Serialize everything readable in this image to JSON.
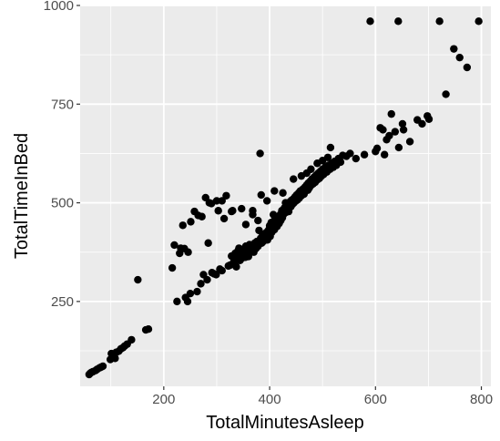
{
  "chart_data": {
    "type": "scatter",
    "title": "",
    "xlabel": "TotalMinutesAsleep",
    "ylabel": "TotalTimeInBed",
    "xlim": [
      42,
      818
    ],
    "ylim": [
      35,
      1000
    ],
    "x_ticks": [
      200,
      400,
      600,
      800
    ],
    "y_ticks": [
      250,
      500,
      750,
      1000
    ],
    "grid": true,
    "legend": "none",
    "colors": {
      "panel": "#ebebeb",
      "grid": "#ffffff",
      "point": "#000000",
      "tick_text": "#4d4d4d",
      "tick_mark": "#333333"
    },
    "points": [
      [
        59,
        65
      ],
      [
        61,
        68
      ],
      [
        63,
        70
      ],
      [
        66,
        72
      ],
      [
        71,
        75
      ],
      [
        74,
        78
      ],
      [
        79,
        82
      ],
      [
        82,
        84
      ],
      [
        85,
        86
      ],
      [
        99,
        103
      ],
      [
        101,
        118
      ],
      [
        105,
        110
      ],
      [
        108,
        106
      ],
      [
        110,
        121
      ],
      [
        115,
        124
      ],
      [
        119,
        130
      ],
      [
        123,
        133
      ],
      [
        126,
        137
      ],
      [
        131,
        142
      ],
      [
        139,
        153
      ],
      [
        151,
        305
      ],
      [
        166,
        178
      ],
      [
        171,
        180
      ],
      [
        216,
        335
      ],
      [
        220,
        393
      ],
      [
        225,
        250
      ],
      [
        230,
        372
      ],
      [
        232,
        385
      ],
      [
        236,
        443
      ],
      [
        239,
        384
      ],
      [
        241,
        260
      ],
      [
        245,
        250
      ],
      [
        246,
        375
      ],
      [
        250,
        270
      ],
      [
        251,
        452
      ],
      [
        258,
        478
      ],
      [
        263,
        275
      ],
      [
        265,
        468
      ],
      [
        270,
        295
      ],
      [
        272,
        465
      ],
      [
        275,
        318
      ],
      [
        279,
        513
      ],
      [
        282,
        305
      ],
      [
        284,
        398
      ],
      [
        286,
        500
      ],
      [
        290,
        498
      ],
      [
        291,
        323
      ],
      [
        295,
        320
      ],
      [
        299,
        318
      ],
      [
        303,
        480
      ],
      [
        306,
        332
      ],
      [
        310,
        328
      ],
      [
        314,
        460
      ],
      [
        318,
        518
      ],
      [
        322,
        340
      ],
      [
        325,
        342
      ],
      [
        328,
        365
      ],
      [
        330,
        480
      ],
      [
        332,
        350
      ],
      [
        334,
        358
      ],
      [
        335,
        372
      ],
      [
        337,
        338
      ],
      [
        339,
        362
      ],
      [
        340,
        378
      ],
      [
        342,
        385
      ],
      [
        344,
        354
      ],
      [
        346,
        368
      ],
      [
        348,
        360
      ],
      [
        350,
        382
      ],
      [
        352,
        375
      ],
      [
        354,
        362
      ],
      [
        355,
        390
      ],
      [
        357,
        370
      ],
      [
        358,
        385
      ],
      [
        360,
        364
      ],
      [
        362,
        394
      ],
      [
        363,
        378
      ],
      [
        365,
        385
      ],
      [
        366,
        392
      ],
      [
        368,
        480
      ],
      [
        370,
        375
      ],
      [
        372,
        398
      ],
      [
        374,
        384
      ],
      [
        376,
        402
      ],
      [
        378,
        390
      ],
      [
        380,
        430
      ],
      [
        382,
        625
      ],
      [
        383,
        410
      ],
      [
        385,
        398
      ],
      [
        386,
        415
      ],
      [
        388,
        402
      ],
      [
        390,
        420
      ],
      [
        392,
        412
      ],
      [
        394,
        425
      ],
      [
        396,
        406
      ],
      [
        398,
        431
      ],
      [
        400,
        442
      ],
      [
        401,
        415
      ],
      [
        403,
        450
      ],
      [
        404,
        425
      ],
      [
        406,
        438
      ],
      [
        407,
        470
      ],
      [
        409,
        432
      ],
      [
        410,
        459
      ],
      [
        412,
        445
      ],
      [
        414,
        440
      ],
      [
        415,
        452
      ],
      [
        417,
        462
      ],
      [
        418,
        448
      ],
      [
        420,
        470
      ],
      [
        421,
        455
      ],
      [
        423,
        480
      ],
      [
        424,
        462
      ],
      [
        426,
        470
      ],
      [
        428,
        487
      ],
      [
        430,
        500
      ],
      [
        431,
        476
      ],
      [
        433,
        488
      ],
      [
        435,
        495
      ],
      [
        436,
        478
      ],
      [
        438,
        502
      ],
      [
        440,
        490
      ],
      [
        441,
        506
      ],
      [
        443,
        496
      ],
      [
        445,
        510
      ],
      [
        446,
        500
      ],
      [
        448,
        515
      ],
      [
        450,
        505
      ],
      [
        451,
        520
      ],
      [
        453,
        508
      ],
      [
        455,
        525
      ],
      [
        456,
        512
      ],
      [
        458,
        530
      ],
      [
        460,
        518
      ],
      [
        462,
        527
      ],
      [
        463,
        535
      ],
      [
        465,
        522
      ],
      [
        467,
        540
      ],
      [
        468,
        530
      ],
      [
        470,
        545
      ],
      [
        472,
        532
      ],
      [
        473,
        550
      ],
      [
        475,
        538
      ],
      [
        477,
        555
      ],
      [
        479,
        545
      ],
      [
        480,
        560
      ],
      [
        482,
        548
      ],
      [
        484,
        565
      ],
      [
        486,
        552
      ],
      [
        488,
        570
      ],
      [
        490,
        558
      ],
      [
        492,
        575
      ],
      [
        494,
        562
      ],
      [
        496,
        580
      ],
      [
        498,
        568
      ],
      [
        500,
        585
      ],
      [
        502,
        572
      ],
      [
        505,
        590
      ],
      [
        508,
        578
      ],
      [
        511,
        595
      ],
      [
        514,
        585
      ],
      [
        517,
        600
      ],
      [
        520,
        590
      ],
      [
        523,
        605
      ],
      [
        526,
        595
      ],
      [
        530,
        612
      ],
      [
        534,
        603
      ],
      [
        538,
        620
      ],
      [
        545,
        618
      ],
      [
        552,
        625
      ],
      [
        300,
        505
      ],
      [
        310,
        505
      ],
      [
        328,
        478
      ],
      [
        347,
        485
      ],
      [
        355,
        445
      ],
      [
        368,
        470
      ],
      [
        378,
        455
      ],
      [
        384,
        520
      ],
      [
        395,
        505
      ],
      [
        409,
        530
      ],
      [
        425,
        525
      ],
      [
        435,
        485
      ],
      [
        445,
        560
      ],
      [
        460,
        568
      ],
      [
        470,
        575
      ],
      [
        478,
        585
      ],
      [
        490,
        600
      ],
      [
        500,
        607
      ],
      [
        510,
        615
      ],
      [
        515,
        640
      ],
      [
        563,
        612
      ],
      [
        579,
        622
      ],
      [
        600,
        630
      ],
      [
        603,
        638
      ],
      [
        609,
        690
      ],
      [
        614,
        685
      ],
      [
        617,
        622
      ],
      [
        621,
        660
      ],
      [
        626,
        670
      ],
      [
        630,
        725
      ],
      [
        637,
        680
      ],
      [
        644,
        640
      ],
      [
        651,
        700
      ],
      [
        653,
        685
      ],
      [
        665,
        655
      ],
      [
        679,
        710
      ],
      [
        688,
        700
      ],
      [
        698,
        720
      ],
      [
        701,
        712
      ],
      [
        733,
        775
      ],
      [
        748,
        890
      ],
      [
        759,
        868
      ],
      [
        590,
        960
      ],
      [
        643,
        960
      ],
      [
        721,
        960
      ],
      [
        795,
        960
      ],
      [
        773,
        843
      ]
    ]
  }
}
